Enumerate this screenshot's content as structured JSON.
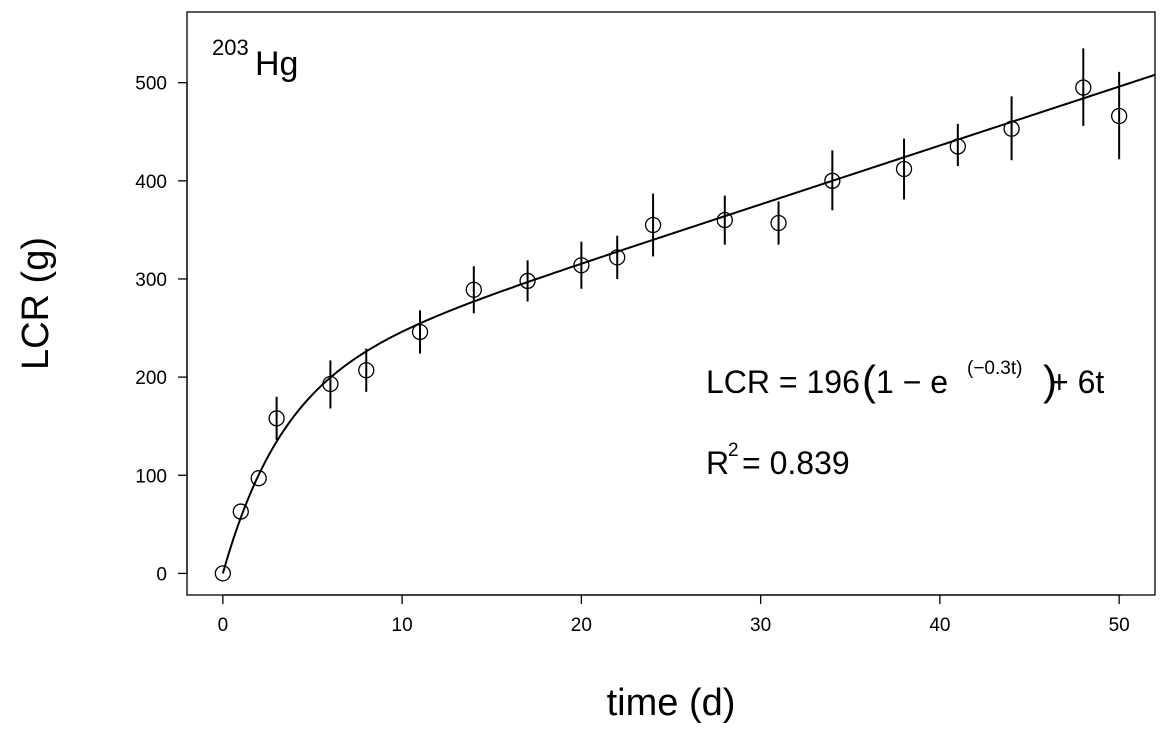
{
  "chart_data": {
    "type": "scatter",
    "xlabel": "time (d)",
    "ylabel": "LCR (g)",
    "xlim": [
      -2,
      52
    ],
    "ylim": [
      -22,
      572
    ],
    "xticks": [
      0,
      10,
      20,
      30,
      40,
      50
    ],
    "yticks": [
      0,
      100,
      200,
      300,
      400,
      500
    ],
    "isotope": {
      "mass_number": "203",
      "symbol": "Hg"
    },
    "series": [
      {
        "x": [
          0,
          1,
          2,
          3,
          6,
          8,
          11,
          14,
          17,
          20,
          22,
          24,
          28,
          31,
          34,
          38,
          41,
          44,
          48,
          50
        ],
        "y": [
          0,
          63,
          97,
          158,
          193,
          207,
          246,
          289,
          298,
          314,
          322,
          355,
          360,
          357,
          400,
          412,
          435,
          453,
          495,
          466
        ],
        "err_low": [
          0,
          63,
          97,
          136,
          168,
          185,
          224,
          265,
          277,
          290,
          300,
          323,
          335,
          335,
          370,
          381,
          415,
          421,
          456,
          422
        ],
        "err_high": [
          0,
          63,
          97,
          180,
          217,
          229,
          268,
          313,
          319,
          338,
          344,
          387,
          385,
          379,
          431,
          443,
          458,
          486,
          535,
          511
        ],
        "marker": "open-circle"
      }
    ],
    "fit": {
      "A": 196,
      "k": 0.3,
      "slope": 6,
      "equation": {
        "prefix": "LCR = 196",
        "paren_open": "(",
        "one_minus": "1 − e",
        "exponent": "(−0.3t)",
        "paren_close": ")",
        "suffix": " + 6t"
      },
      "r2": {
        "base": "R",
        "sup": "2",
        "rest": " = 0.839"
      }
    },
    "legend": "none",
    "grid": false
  }
}
